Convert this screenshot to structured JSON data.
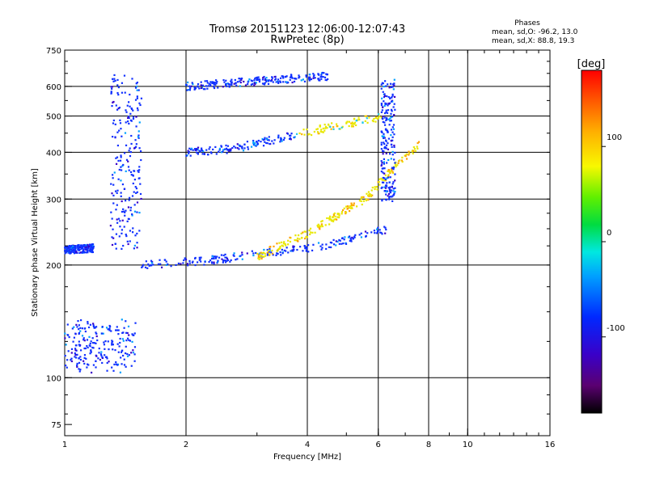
{
  "chart_data": {
    "type": "scatter",
    "title": "Tromsø 20151123 12:06:00-12:07:43",
    "subtitle": "RwPretec (8p)",
    "xlabel": "Frequency [MHz]",
    "ylabel": "Stationary phase Virtual Height [km]",
    "x_scale": "log",
    "y_scale": "log",
    "xlim": [
      1,
      16
    ],
    "ylim": [
      70,
      750
    ],
    "x_ticks": [
      1,
      2,
      4,
      6,
      8,
      10,
      16
    ],
    "x_tick_labels": [
      "1",
      "2",
      "4",
      "6",
      "8",
      "10",
      "16"
    ],
    "y_ticks": [
      75,
      100,
      200,
      300,
      400,
      500,
      600,
      750
    ],
    "y_tick_labels": [
      "75",
      "100",
      "200",
      "300",
      "400",
      "500",
      "600",
      "750"
    ],
    "x_gridlines": [
      2,
      4,
      6,
      8,
      10
    ],
    "y_gridlines": [
      100,
      200,
      300,
      400,
      500,
      600
    ],
    "grid": true,
    "phase_stats": {
      "title": "Phases",
      "line_o": "mean, sd,O: -96.2, 13.0",
      "line_x": "mean, sd,X:  88.8, 19.3"
    },
    "colorbar": {
      "label": "[deg]",
      "ticks": [
        100,
        0,
        -100
      ],
      "tick_labels": [
        "100",
        "0",
        "-100"
      ],
      "range": [
        -180,
        180
      ]
    },
    "traces": [
      {
        "x_range": [
          1.0,
          1.18
        ],
        "heights": [
          220,
          222
        ]
      },
      {
        "x_range": [
          1.3,
          1.55
        ],
        "heights": [
          220,
          640
        ]
      },
      {
        "x_range": [
          1.55,
          6.3
        ],
        "heights": [
          200,
          205,
          215,
          225,
          250
        ]
      },
      {
        "x_range": [
          2.0,
          6.2
        ],
        "heights": [
          400,
          410,
          440,
          470,
          500
        ]
      },
      {
        "x_range": [
          2.0,
          4.5
        ],
        "heights": [
          600,
          640
        ]
      },
      {
        "x_range": [
          3.0,
          7.6
        ],
        "heights": [
          210,
          245,
          300,
          420
        ]
      },
      {
        "x_range": [
          6.1,
          6.6
        ],
        "heights": [
          300,
          500,
          620
        ]
      },
      {
        "x_range": [
          1.0,
          1.5
        ],
        "heights": [
          105,
          140
        ]
      }
    ]
  }
}
